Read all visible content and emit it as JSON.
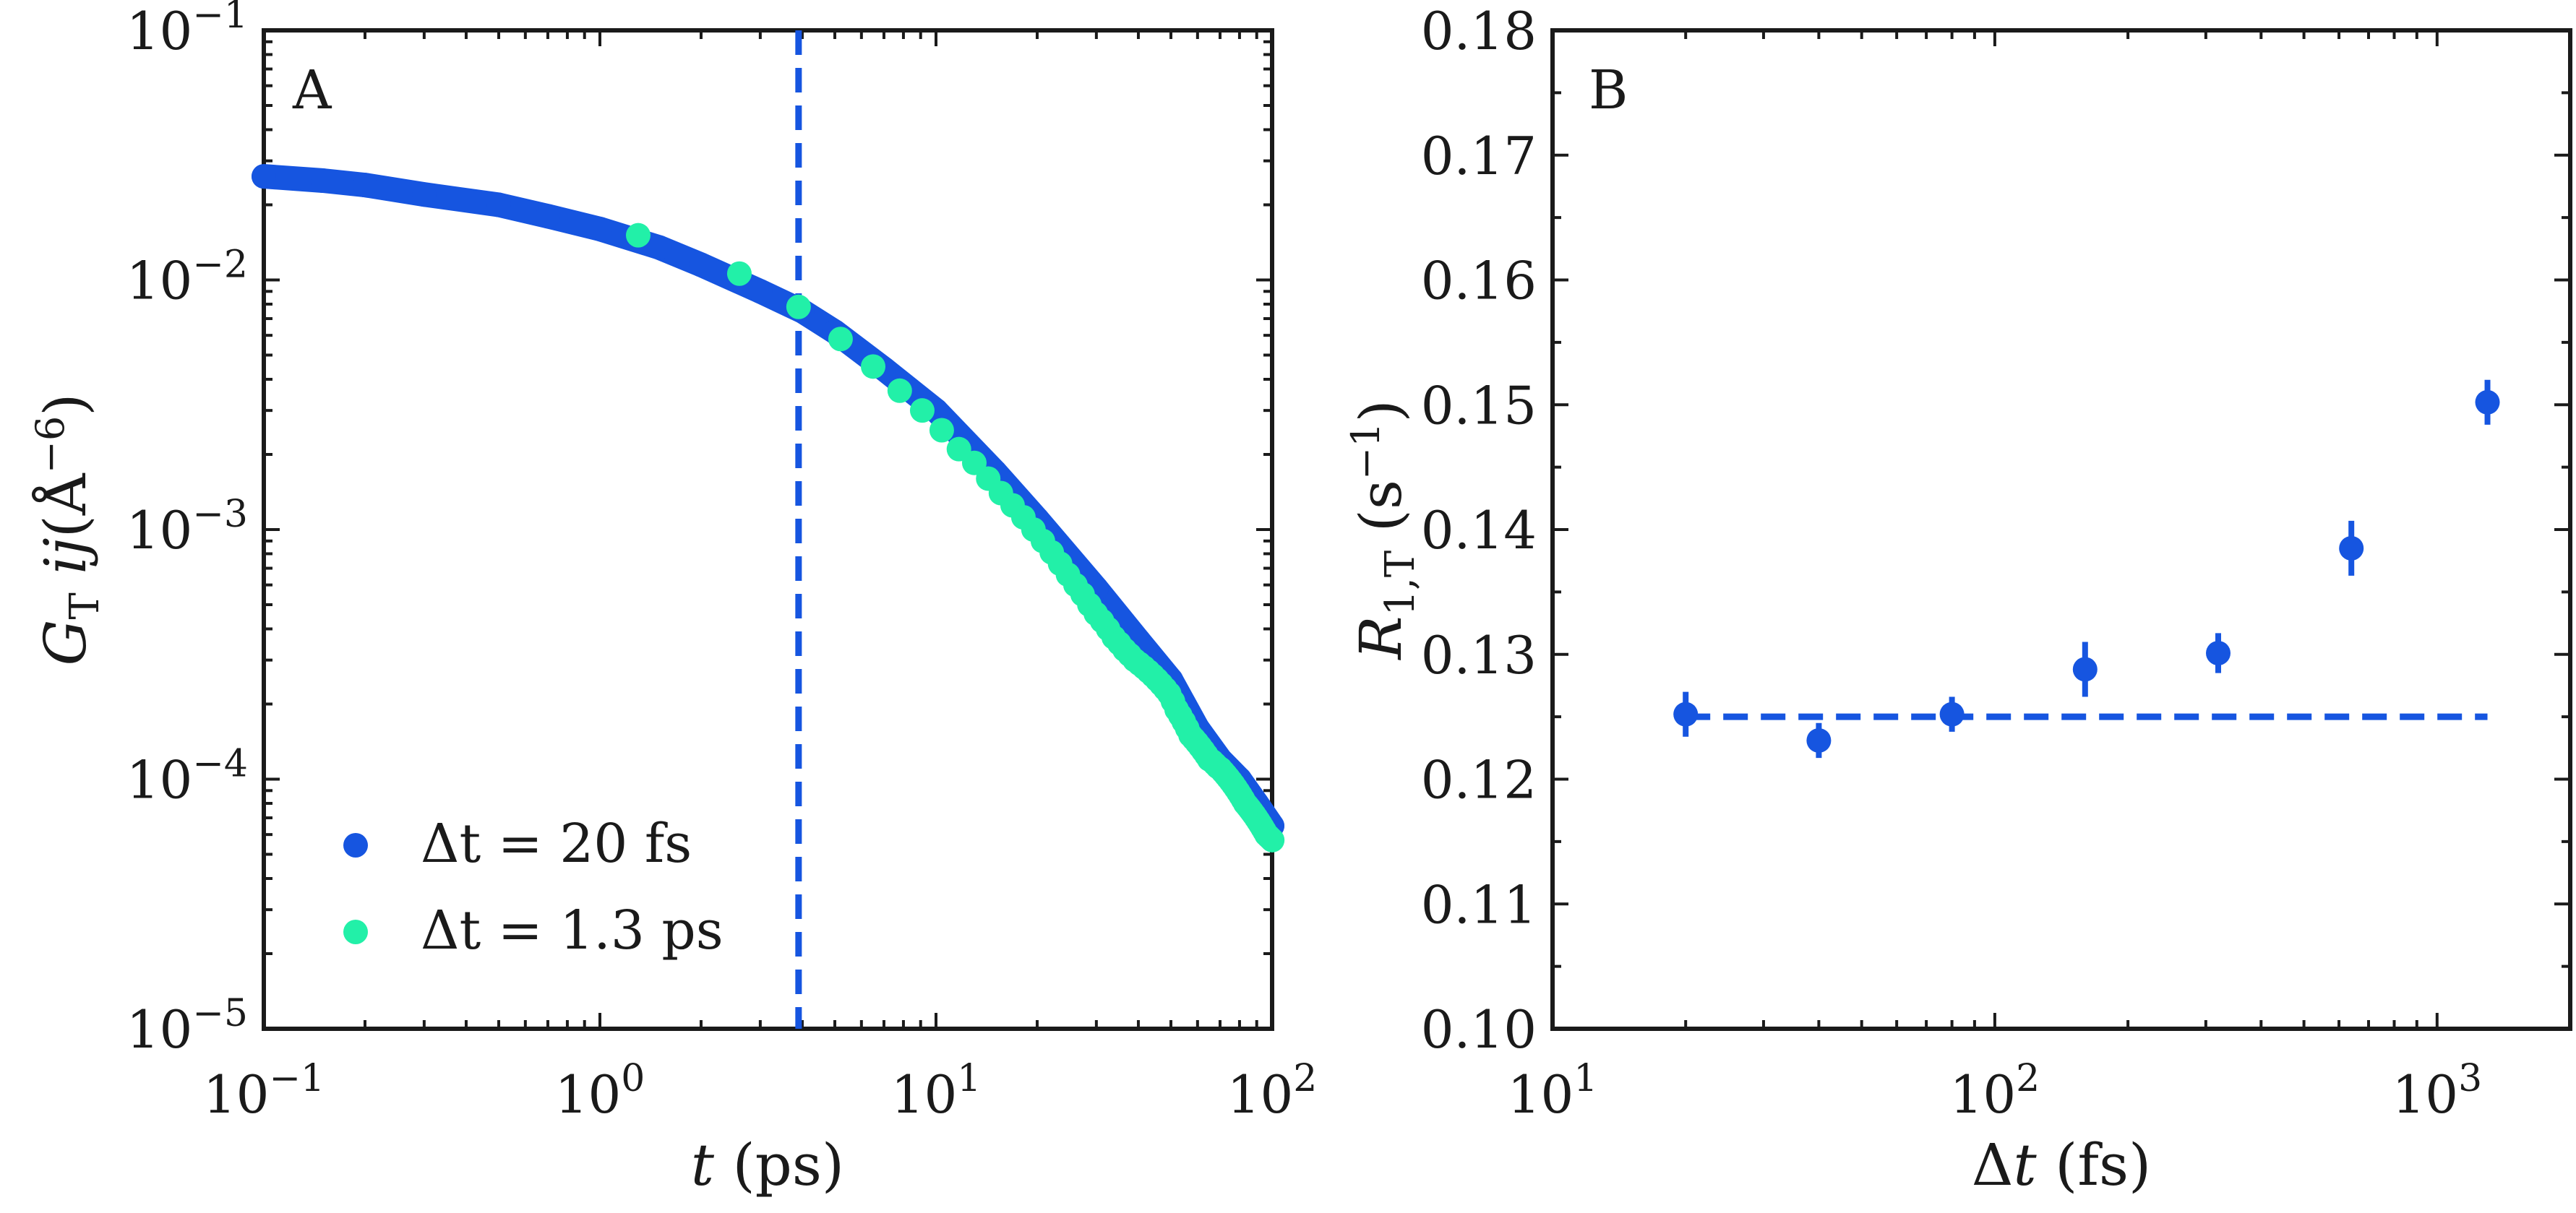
{
  "chart_data": [
    {
      "type": "scatter",
      "panel_label": "A",
      "xlabel": "t (ps)",
      "ylabel": "G_T ij (Å^-6)",
      "xscale": "log",
      "yscale": "log",
      "xlim": [
        0.1,
        100
      ],
      "ylim": [
        1e-05,
        0.1
      ],
      "x_ticks": [
        {
          "base": "10",
          "exp": "−1"
        },
        {
          "base": "10",
          "exp": "0"
        },
        {
          "base": "10",
          "exp": "1"
        },
        {
          "base": "10",
          "exp": "2"
        }
      ],
      "y_ticks": [
        {
          "base": "10",
          "exp": "−5"
        },
        {
          "base": "10",
          "exp": "−4"
        },
        {
          "base": "10",
          "exp": "−3"
        },
        {
          "base": "10",
          "exp": "−2"
        },
        {
          "base": "10",
          "exp": "−1"
        }
      ],
      "vline_x": 3.9,
      "legend_position": "lower-left",
      "series": [
        {
          "name": "Δt = 20 fs",
          "color": "#1655e0",
          "marker": "circle",
          "x": [
            0.1,
            0.15,
            0.2,
            0.3,
            0.5,
            0.7,
            1.0,
            1.5,
            2.0,
            3.0,
            4.0,
            5.0,
            7.0,
            10,
            15,
            20,
            30,
            40,
            50,
            60,
            70,
            80,
            90,
            100
          ],
          "y": [
            0.026,
            0.025,
            0.024,
            0.022,
            0.02,
            0.018,
            0.016,
            0.0135,
            0.0115,
            0.009,
            0.0075,
            0.0062,
            0.0044,
            0.003,
            0.0017,
            0.0011,
            0.00058,
            0.00036,
            0.00025,
            0.00016,
            0.00012,
            0.0001,
            8e-05,
            6.5e-05
          ]
        },
        {
          "name": "Δt = 1.3 ps",
          "color": "#22f0a8",
          "marker": "circle",
          "x": [
            1.3,
            2.6,
            3.9,
            5.2,
            6.5,
            7.8,
            9.1,
            10.4,
            11.7,
            13,
            14.3,
            15.6,
            16.9,
            18.2,
            19.5,
            20.8,
            22.1,
            23.4,
            24.7,
            26,
            27.3,
            28.6,
            29.9,
            31.2,
            32.5,
            33.8,
            35.1,
            36.4,
            37.7,
            39,
            40.3,
            41.6,
            42.9,
            44.2,
            45.5,
            46.8,
            48.1,
            49.4,
            50.7,
            52,
            53.3,
            54.6,
            55.9,
            57.2,
            58.5,
            59.8,
            61.1,
            62.4,
            63.7,
            65,
            66.3,
            67.6,
            68.9,
            70.2,
            71.5,
            72.8,
            74.1,
            75.4,
            76.7,
            78,
            79.3,
            80.6,
            81.9,
            83.2,
            84.5,
            85.8,
            87.1,
            88.4,
            89.7,
            91,
            92.3,
            93.6,
            94.9,
            96.2,
            97.5,
            98.8,
            100.1
          ],
          "y": [
            0.0151,
            0.0106,
            0.0078,
            0.0058,
            0.0045,
            0.0036,
            0.003,
            0.0025,
            0.0021,
            0.00185,
            0.0016,
            0.0014,
            0.00125,
            0.00112,
            0.001,
            0.0009,
            0.00081,
            0.00073,
            0.00066,
            0.0006,
            0.00055,
            0.0005,
            0.00046,
            0.00043,
            0.0004,
            0.00037,
            0.00035,
            0.00033,
            0.000315,
            0.0003,
            0.00029,
            0.00028,
            0.00027,
            0.00026,
            0.00025,
            0.00024,
            0.00023,
            0.00022,
            0.000205,
            0.00019,
            0.00018,
            0.00017,
            0.00016,
            0.00015,
            0.000145,
            0.00014,
            0.000135,
            0.00013,
            0.000125,
            0.00012,
            0.000118,
            0.000115,
            0.000112,
            0.00011,
            0.000107,
            0.000104,
            0.000101,
            9.8e-05,
            9.5e-05,
            9.2e-05,
            8.9e-05,
            8.6e-05,
            8.3e-05,
            8e-05,
            7.8e-05,
            7.6e-05,
            7.4e-05,
            7.2e-05,
            7e-05,
            6.8e-05,
            6.6e-05,
            6.4e-05,
            6.2e-05,
            6e-05,
            5.9e-05,
            5.8e-05,
            5.7e-05
          ]
        }
      ]
    },
    {
      "type": "scatter",
      "panel_label": "B",
      "xlabel": "Δt (fs)",
      "ylabel": "R_1,T (s^-1)",
      "xscale": "log",
      "yscale": "linear",
      "xlim": [
        10,
        2000
      ],
      "ylim": [
        0.1,
        0.18
      ],
      "x_ticks": [
        {
          "base": "10",
          "exp": "1"
        },
        {
          "base": "10",
          "exp": "2"
        },
        {
          "base": "10",
          "exp": "3"
        }
      ],
      "y_ticks": [
        "0.10",
        "0.11",
        "0.12",
        "0.13",
        "0.14",
        "0.15",
        "0.16",
        "0.17",
        "0.18"
      ],
      "hline": {
        "y": 0.125,
        "x_range": [
          20,
          1300
        ]
      },
      "series": [
        {
          "color": "#1655e0",
          "marker": "circle",
          "x": [
            20,
            40,
            80,
            160,
            320,
            640,
            1300
          ],
          "y": [
            0.1252,
            0.1231,
            0.1252,
            0.1288,
            0.1301,
            0.1385,
            0.1502
          ],
          "yerr": [
            0.0018,
            0.0014,
            0.0014,
            0.0022,
            0.0016,
            0.0022,
            0.0018
          ]
        }
      ]
    }
  ]
}
